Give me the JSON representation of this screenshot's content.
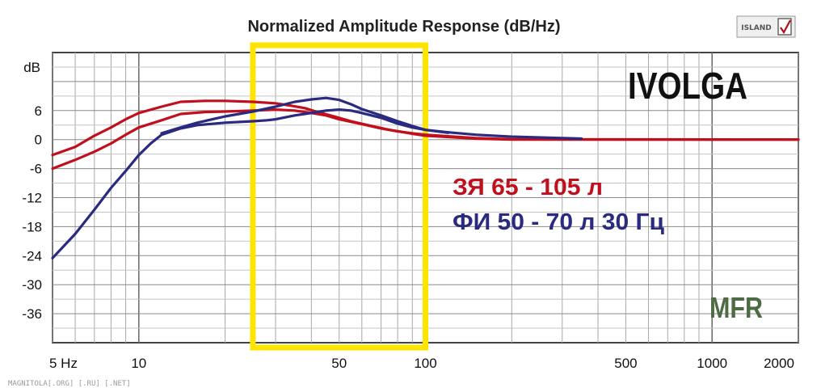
{
  "chart_data": {
    "type": "line",
    "title": "Normalized Amplitude Response (dB/Hz)",
    "xscale": "log",
    "xlim": [
      5,
      2000
    ],
    "ylim": [
      -42,
      18
    ],
    "ylabel": "dB",
    "grid": true,
    "xtick_labels": [
      {
        "value": 5,
        "label": "5 Hz"
      },
      {
        "value": 10,
        "label": "10"
      },
      {
        "value": 50,
        "label": "50"
      },
      {
        "value": 100,
        "label": "100"
      },
      {
        "value": 500,
        "label": "500"
      },
      {
        "value": 1000,
        "label": "1000"
      },
      {
        "value": 2000,
        "label": "2000"
      }
    ],
    "yticks": [
      6,
      0,
      -6,
      -12,
      -18,
      -24,
      -30,
      -36
    ],
    "ytick_labels": [
      "6",
      "0",
      "-6",
      "-12",
      "-18",
      "-24",
      "-30",
      "-36"
    ],
    "brand_label": "IVOLGA",
    "corner_label": "MFR",
    "annotations": [
      {
        "text": "ЗЯ 65 - 105 л",
        "color": "#c0101e"
      },
      {
        "text": "ФИ 50 - 70 л 30 Гц",
        "color": "#2a2a80"
      }
    ],
    "highlight_region": {
      "x_from": 25,
      "x_to": 100,
      "color": "#ffe400"
    },
    "series": [
      {
        "color": "#c0101e",
        "points": [
          [
            5,
            -3.2
          ],
          [
            6,
            -1.5
          ],
          [
            7,
            0.8
          ],
          [
            8,
            2.5
          ],
          [
            9,
            4.2
          ],
          [
            10,
            5.5
          ],
          [
            12,
            6.8
          ],
          [
            14,
            7.8
          ],
          [
            17,
            8.0
          ],
          [
            20,
            8.0
          ],
          [
            25,
            7.8
          ],
          [
            30,
            7.5
          ],
          [
            34,
            7.0
          ],
          [
            38,
            6.5
          ],
          [
            42,
            5.7
          ],
          [
            48,
            4.8
          ],
          [
            55,
            3.8
          ],
          [
            65,
            2.8
          ],
          [
            75,
            2.0
          ],
          [
            90,
            1.2
          ],
          [
            100,
            0.8
          ],
          [
            150,
            0.2
          ],
          [
            200,
            0
          ],
          [
            2000,
            0
          ]
        ]
      },
      {
        "color": "#c0101e",
        "points": [
          [
            5,
            -6.0
          ],
          [
            6,
            -4.2
          ],
          [
            7,
            -2.5
          ],
          [
            8,
            -0.8
          ],
          [
            9,
            1.0
          ],
          [
            10,
            2.5
          ],
          [
            12,
            4.0
          ],
          [
            14,
            5.3
          ],
          [
            17,
            5.7
          ],
          [
            20,
            5.8
          ],
          [
            25,
            6.0
          ],
          [
            30,
            6.2
          ],
          [
            35,
            6.0
          ],
          [
            40,
            5.5
          ],
          [
            45,
            5.0
          ],
          [
            50,
            4.2
          ],
          [
            60,
            3.2
          ],
          [
            70,
            2.3
          ],
          [
            80,
            1.7
          ],
          [
            90,
            1.3
          ],
          [
            100,
            1.0
          ],
          [
            150,
            0.3
          ],
          [
            200,
            0.05
          ],
          [
            2000,
            0
          ]
        ]
      },
      {
        "color": "#2a2a80",
        "points": [
          [
            5,
            -24.5
          ],
          [
            6,
            -19.5
          ],
          [
            7,
            -14.5
          ],
          [
            8,
            -10.0
          ],
          [
            9,
            -6.5
          ],
          [
            10,
            -3.2
          ],
          [
            11,
            -0.8
          ],
          [
            12,
            1.0
          ],
          [
            14,
            2.3
          ],
          [
            16,
            3.0
          ],
          [
            20,
            3.5
          ],
          [
            25,
            3.8
          ],
          [
            28,
            4.0
          ],
          [
            30,
            4.2
          ],
          [
            35,
            5.0
          ],
          [
            40,
            5.5
          ],
          [
            45,
            6.0
          ],
          [
            50,
            6.2
          ],
          [
            55,
            6.0
          ],
          [
            60,
            5.5
          ],
          [
            70,
            4.5
          ],
          [
            80,
            3.3
          ],
          [
            90,
            2.5
          ],
          [
            100,
            2.0
          ],
          [
            120,
            1.5
          ],
          [
            150,
            1.0
          ],
          [
            200,
            0.6
          ],
          [
            300,
            0.3
          ],
          [
            350,
            0.2
          ]
        ]
      },
      {
        "color": "#2a2a80",
        "points": [
          [
            12,
            1.3
          ],
          [
            14,
            2.5
          ],
          [
            16,
            3.5
          ],
          [
            20,
            4.8
          ],
          [
            25,
            5.8
          ],
          [
            30,
            6.8
          ],
          [
            35,
            7.8
          ],
          [
            40,
            8.3
          ],
          [
            45,
            8.6
          ],
          [
            50,
            8.2
          ],
          [
            55,
            7.3
          ],
          [
            60,
            6.3
          ],
          [
            70,
            5.0
          ],
          [
            80,
            3.8
          ],
          [
            90,
            2.8
          ],
          [
            100,
            2.0
          ],
          [
            120,
            1.4
          ]
        ]
      }
    ]
  },
  "logo_text": "ISLAND",
  "footer": "MAGNITOLA[.ORG] [.RU] [.NET]"
}
